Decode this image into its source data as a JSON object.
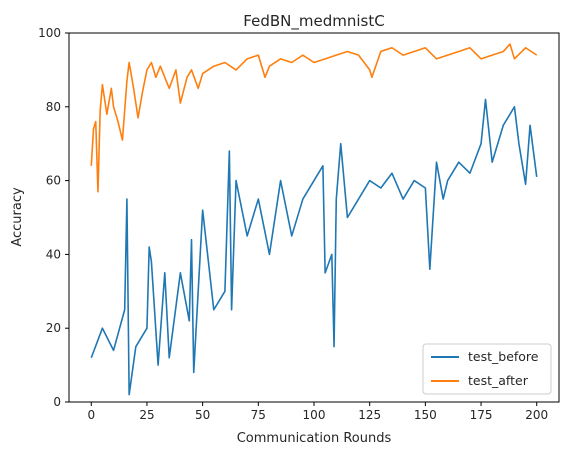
{
  "chart_data": {
    "type": "line",
    "title": "FedBN_medmnistC",
    "xlabel": "Communication Rounds",
    "ylabel": "Accuracy",
    "xlim": [
      -10,
      210
    ],
    "ylim": [
      0,
      100
    ],
    "xticks": [
      0,
      25,
      50,
      75,
      100,
      125,
      150,
      175,
      200
    ],
    "yticks": [
      0,
      20,
      40,
      60,
      80,
      100
    ],
    "grid": false,
    "legend_position": "lower right",
    "series": [
      {
        "name": "test_before",
        "color": "#1f77b4",
        "x": [
          0,
          5,
          10,
          15,
          16,
          17,
          20,
          25,
          26,
          27,
          30,
          33,
          35,
          40,
          44,
          45,
          46,
          48,
          50,
          55,
          60,
          62,
          63,
          65,
          70,
          75,
          80,
          85,
          90,
          95,
          100,
          104,
          105,
          108,
          109,
          110,
          112,
          115,
          120,
          125,
          130,
          135,
          140,
          145,
          150,
          152,
          155,
          158,
          160,
          165,
          170,
          175,
          177,
          180,
          185,
          190,
          192,
          195,
          197,
          200
        ],
        "y": [
          12,
          20,
          14,
          25,
          55,
          2,
          15,
          20,
          42,
          38,
          10,
          35,
          12,
          35,
          22,
          44,
          8,
          30,
          52,
          25,
          30,
          68,
          25,
          60,
          45,
          55,
          40,
          60,
          45,
          55,
          60,
          64,
          35,
          40,
          15,
          55,
          70,
          50,
          55,
          60,
          58,
          62,
          55,
          60,
          58,
          36,
          65,
          55,
          60,
          65,
          62,
          70,
          82,
          65,
          75,
          80,
          70,
          59,
          75,
          61
        ]
      },
      {
        "name": "test_after",
        "color": "#ff7f0e",
        "x": [
          0,
          1,
          2,
          3,
          4,
          5,
          7,
          9,
          10,
          12,
          14,
          16,
          17,
          19,
          21,
          23,
          25,
          27,
          29,
          31,
          33,
          35,
          38,
          40,
          43,
          45,
          48,
          50,
          55,
          60,
          65,
          70,
          75,
          78,
          80,
          85,
          90,
          95,
          100,
          105,
          110,
          115,
          120,
          125,
          126,
          130,
          135,
          140,
          145,
          150,
          155,
          160,
          165,
          170,
          175,
          180,
          185,
          188,
          190,
          195,
          200
        ],
        "y": [
          64,
          74,
          76,
          57,
          79,
          86,
          78,
          85,
          80,
          76,
          71,
          87,
          92,
          85,
          77,
          84,
          90,
          92,
          88,
          91,
          88,
          85,
          90,
          81,
          88,
          90,
          85,
          89,
          91,
          92,
          90,
          93,
          94,
          88,
          91,
          93,
          92,
          94,
          92,
          93,
          94,
          95,
          94,
          90,
          88,
          95,
          96,
          94,
          95,
          96,
          93,
          94,
          95,
          96,
          93,
          94,
          95,
          97,
          93,
          96,
          94
        ]
      }
    ]
  }
}
